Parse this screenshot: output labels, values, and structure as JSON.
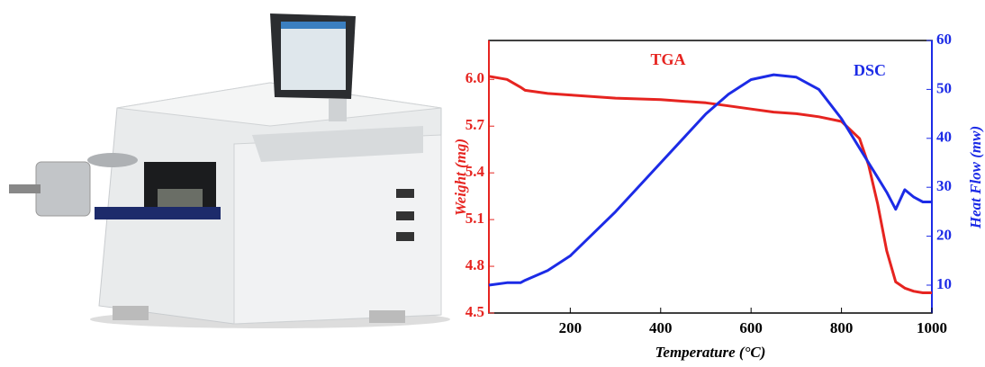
{
  "chart_data": {
    "type": "line",
    "x_label": "Temperature (°C)",
    "y_label": "Weight (mg)",
    "y2_label": "Heat Flow (mw)",
    "annotations": [
      "TGA",
      "DSC"
    ],
    "x": [
      20,
      60,
      90,
      100,
      150,
      200,
      300,
      400,
      500,
      550,
      600,
      650,
      700,
      750,
      800,
      840,
      860,
      880,
      900,
      920,
      940,
      960,
      980,
      1000
    ],
    "series": [
      {
        "name": "TGA",
        "color": "#e62420",
        "axis": "y",
        "values": [
          6.02,
          6.0,
          5.95,
          5.93,
          5.91,
          5.9,
          5.88,
          5.87,
          5.85,
          5.83,
          5.81,
          5.79,
          5.78,
          5.76,
          5.73,
          5.62,
          5.45,
          5.2,
          4.9,
          4.7,
          4.66,
          4.64,
          4.63,
          4.63
        ]
      },
      {
        "name": "DSC",
        "color": "#1c2be6",
        "axis": "y2",
        "values": [
          10,
          10.5,
          10.5,
          11,
          13,
          16,
          25,
          35,
          45,
          49,
          52,
          53,
          52.5,
          50,
          44,
          38,
          35,
          32,
          29,
          25.5,
          29.5,
          28,
          27,
          27
        ]
      }
    ],
    "xlim": [
      20,
      1000
    ],
    "xticks": [
      200,
      400,
      600,
      800,
      1000
    ],
    "ylim": [
      4.5,
      6.25
    ],
    "yticks": [
      4.5,
      4.8,
      5.1,
      5.4,
      5.7,
      {
        "value": 6,
        "label": "6.0"
      }
    ],
    "y2lim": [
      4.3,
      60
    ],
    "y2ticks": [
      10,
      20,
      30,
      40,
      50,
      60
    ]
  }
}
